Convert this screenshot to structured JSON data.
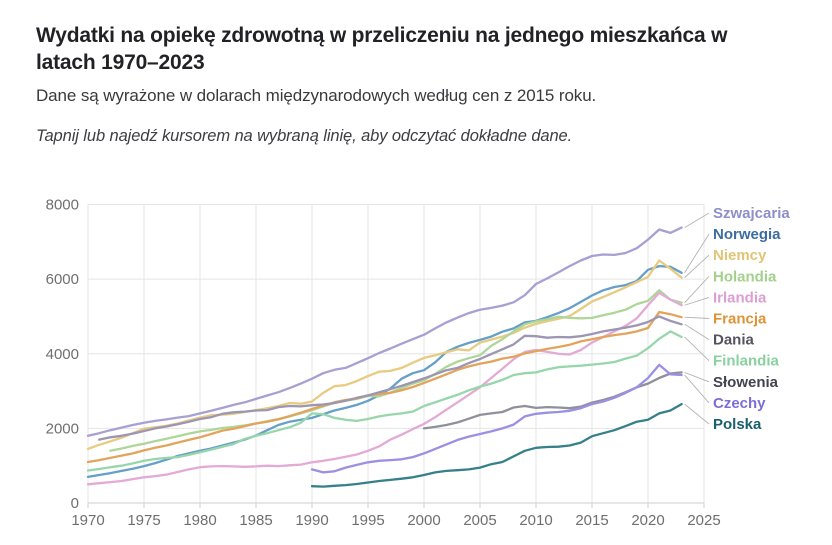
{
  "header": {
    "title": "Wydatki na opiekę zdrowotną w przeliczeniu na jednego mieszkańca w latach 1970–2023",
    "subtitle": "Dane są wyrażone w dolarach międzynarodowych według cen z 2015 roku.",
    "hint": "Tapnij lub najedź kursorem na wybraną linię, aby odczytać dokładne dane."
  },
  "chart_data": {
    "type": "line",
    "xlim": [
      1970,
      2025
    ],
    "ylim": [
      0,
      8000
    ],
    "x_ticks": [
      1970,
      1975,
      1980,
      1985,
      1990,
      1995,
      2000,
      2005,
      2010,
      2015,
      2020,
      2025
    ],
    "y_ticks": [
      0,
      2000,
      4000,
      6000,
      8000
    ],
    "grid": true,
    "legend_position": "right",
    "series": [
      {
        "name": "Szwajcaria",
        "color": "#a6a0d3",
        "label_color": "#8d8fc9",
        "start_year": 1970,
        "values": [
          1800,
          1870,
          1950,
          2020,
          2090,
          2150,
          2200,
          2240,
          2290,
          2330,
          2400,
          2470,
          2550,
          2630,
          2700,
          2790,
          2880,
          2970,
          3080,
          3200,
          3330,
          3480,
          3570,
          3620,
          3750,
          3880,
          4020,
          4140,
          4270,
          4390,
          4510,
          4680,
          4840,
          4970,
          5090,
          5180,
          5230,
          5290,
          5380,
          5570,
          5870,
          6020,
          6180,
          6350,
          6500,
          6620,
          6660,
          6650,
          6700,
          6830,
          7060,
          7330,
          7240,
          7380
        ]
      },
      {
        "name": "Norwegia",
        "color": "#66a0c8",
        "label_color": "#3c6e9f",
        "start_year": 1970,
        "values": [
          700,
          750,
          800,
          860,
          920,
          990,
          1070,
          1160,
          1260,
          1330,
          1400,
          1460,
          1540,
          1620,
          1700,
          1810,
          1950,
          2090,
          2180,
          2230,
          2280,
          2380,
          2480,
          2550,
          2630,
          2740,
          2890,
          3070,
          3330,
          3480,
          3560,
          3770,
          4050,
          4190,
          4290,
          4370,
          4460,
          4590,
          4680,
          4840,
          4880,
          4980,
          5090,
          5220,
          5390,
          5560,
          5700,
          5790,
          5840,
          5950,
          6250,
          6350,
          6330,
          6170
        ]
      },
      {
        "name": "Niemcy",
        "color": "#e7cb80",
        "label_color": "#e0c575",
        "start_year": 1970,
        "values": [
          1450,
          1560,
          1650,
          1750,
          1870,
          1990,
          2030,
          2070,
          2130,
          2210,
          2290,
          2350,
          2370,
          2390,
          2440,
          2490,
          2540,
          2600,
          2680,
          2660,
          2720,
          2950,
          3130,
          3160,
          3270,
          3400,
          3520,
          3540,
          3620,
          3760,
          3890,
          3960,
          4040,
          4120,
          4090,
          4300,
          4380,
          4460,
          4560,
          4700,
          4800,
          4870,
          4940,
          5010,
          5200,
          5400,
          5520,
          5650,
          5780,
          5920,
          6060,
          6500,
          6280,
          6040
        ]
      },
      {
        "name": "Holandia",
        "color": "#aed699",
        "label_color": "#a3d18c",
        "start_year": 1972,
        "values": [
          1400,
          1460,
          1530,
          1590,
          1660,
          1720,
          1790,
          1860,
          1920,
          1960,
          2010,
          2040,
          2080,
          2130,
          2190,
          2250,
          2320,
          2400,
          2490,
          2590,
          2680,
          2740,
          2790,
          2870,
          2860,
          2960,
          3080,
          3200,
          3290,
          3460,
          3650,
          3790,
          3880,
          3960,
          4210,
          4390,
          4600,
          4790,
          4870,
          4920,
          4990,
          4960,
          4950,
          4960,
          5030,
          5100,
          5180,
          5330,
          5420,
          5700,
          5450,
          5370
        ]
      },
      {
        "name": "Irlandia",
        "color": "#e3aad6",
        "label_color": "#dd9fd2",
        "start_year": 1970,
        "values": [
          500,
          530,
          560,
          590,
          640,
          690,
          720,
          760,
          830,
          900,
          960,
          980,
          990,
          980,
          970,
          980,
          1000,
          990,
          1010,
          1030,
          1090,
          1130,
          1180,
          1240,
          1300,
          1400,
          1520,
          1700,
          1830,
          1980,
          2120,
          2300,
          2500,
          2700,
          2900,
          3100,
          3350,
          3600,
          3850,
          4050,
          4100,
          4050,
          4000,
          3980,
          4100,
          4300,
          4450,
          4600,
          4750,
          4950,
          5300,
          5630,
          5450,
          5300
        ]
      },
      {
        "name": "Francja",
        "color": "#e2a45c",
        "label_color": "#dd9338",
        "start_year": 1970,
        "values": [
          1100,
          1150,
          1210,
          1270,
          1330,
          1410,
          1480,
          1540,
          1620,
          1690,
          1760,
          1850,
          1940,
          1990,
          2060,
          2130,
          2180,
          2240,
          2330,
          2420,
          2520,
          2610,
          2700,
          2760,
          2800,
          2890,
          2920,
          2950,
          3020,
          3110,
          3220,
          3330,
          3450,
          3570,
          3660,
          3730,
          3790,
          3870,
          3920,
          4010,
          4070,
          4130,
          4180,
          4240,
          4330,
          4390,
          4450,
          4500,
          4540,
          4600,
          4690,
          5120,
          5060,
          4980
        ]
      },
      {
        "name": "Dania",
        "color": "#9c96b4",
        "label_color": "#575263",
        "start_year": 1971,
        "values": [
          1700,
          1760,
          1800,
          1860,
          1930,
          2000,
          2050,
          2110,
          2180,
          2250,
          2300,
          2390,
          2430,
          2450,
          2480,
          2490,
          2570,
          2600,
          2590,
          2620,
          2640,
          2680,
          2740,
          2820,
          2880,
          2970,
          3050,
          3140,
          3240,
          3340,
          3450,
          3560,
          3620,
          3750,
          3860,
          3990,
          4120,
          4250,
          4480,
          4470,
          4430,
          4450,
          4440,
          4470,
          4530,
          4600,
          4650,
          4700,
          4760,
          4850,
          5000,
          4880,
          4790
        ]
      },
      {
        "name": "Finlandia",
        "color": "#97d6ab",
        "label_color": "#89d19f",
        "start_year": 1970,
        "values": [
          870,
          910,
          960,
          1000,
          1060,
          1130,
          1180,
          1210,
          1230,
          1290,
          1360,
          1430,
          1510,
          1580,
          1720,
          1800,
          1870,
          1950,
          2030,
          2150,
          2400,
          2380,
          2280,
          2230,
          2200,
          2250,
          2320,
          2370,
          2400,
          2450,
          2600,
          2700,
          2800,
          2900,
          3020,
          3120,
          3200,
          3300,
          3430,
          3480,
          3500,
          3580,
          3640,
          3660,
          3680,
          3710,
          3740,
          3780,
          3870,
          3950,
          4150,
          4400,
          4600,
          4450
        ]
      },
      {
        "name": "Słowenia",
        "color": "#8f909c",
        "label_color": "#42444e",
        "start_year": 2000,
        "values": [
          2000,
          2040,
          2090,
          2160,
          2260,
          2360,
          2400,
          2440,
          2560,
          2600,
          2550,
          2570,
          2560,
          2540,
          2580,
          2690,
          2760,
          2850,
          2970,
          3100,
          3200,
          3350,
          3470,
          3500
        ]
      },
      {
        "name": "Czechy",
        "color": "#9b90e2",
        "label_color": "#7a6fd8",
        "start_year": 1990,
        "values": [
          900,
          820,
          850,
          950,
          1020,
          1090,
          1130,
          1150,
          1170,
          1230,
          1330,
          1450,
          1570,
          1690,
          1780,
          1850,
          1920,
          2000,
          2100,
          2320,
          2390,
          2420,
          2440,
          2470,
          2540,
          2650,
          2720,
          2820,
          2950,
          3100,
          3350,
          3700,
          3450,
          3430
        ]
      },
      {
        "name": "Polska",
        "color": "#35808a",
        "label_color": "#1a616d",
        "start_year": 1990,
        "values": [
          450,
          440,
          460,
          480,
          510,
          550,
          590,
          620,
          650,
          690,
          750,
          820,
          860,
          880,
          900,
          950,
          1040,
          1100,
          1250,
          1400,
          1480,
          1500,
          1510,
          1540,
          1620,
          1790,
          1870,
          1950,
          2060,
          2180,
          2230,
          2400,
          2480,
          2650
        ]
      }
    ]
  }
}
